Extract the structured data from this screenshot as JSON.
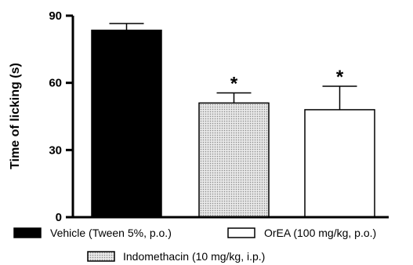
{
  "chart_data": {
    "type": "bar",
    "title": "",
    "xlabel": "",
    "ylabel": "Time of licking (s)",
    "ylim": [
      0,
      90
    ],
    "yticks": [
      0,
      30,
      60,
      90
    ],
    "ytick_labels": [
      "0",
      "30",
      "60",
      "90"
    ],
    "grid": false,
    "legend_position": "bottom",
    "significance_marker": "*",
    "categories": [
      "Vehicle (Tween 5%, p.o.)",
      "Indomethacin (10 mg/kg, i.p.)",
      "OrEA (100 mg/kg, p.o.)"
    ],
    "series": [
      {
        "values": [
          83.5,
          51,
          48
        ],
        "errors": [
          3,
          4.5,
          10.5
        ],
        "fills": [
          "black",
          "dotted-gray",
          "white"
        ],
        "significant": [
          false,
          true,
          true
        ]
      }
    ],
    "legend": [
      {
        "label": "Vehicle (Tween 5%, p.o.)",
        "fill": "black"
      },
      {
        "label": "OrEA (100 mg/kg, p.o.)",
        "fill": "white"
      },
      {
        "label": "Indomethacin (10 mg/kg, i.p.)",
        "fill": "dotted-gray"
      }
    ]
  }
}
